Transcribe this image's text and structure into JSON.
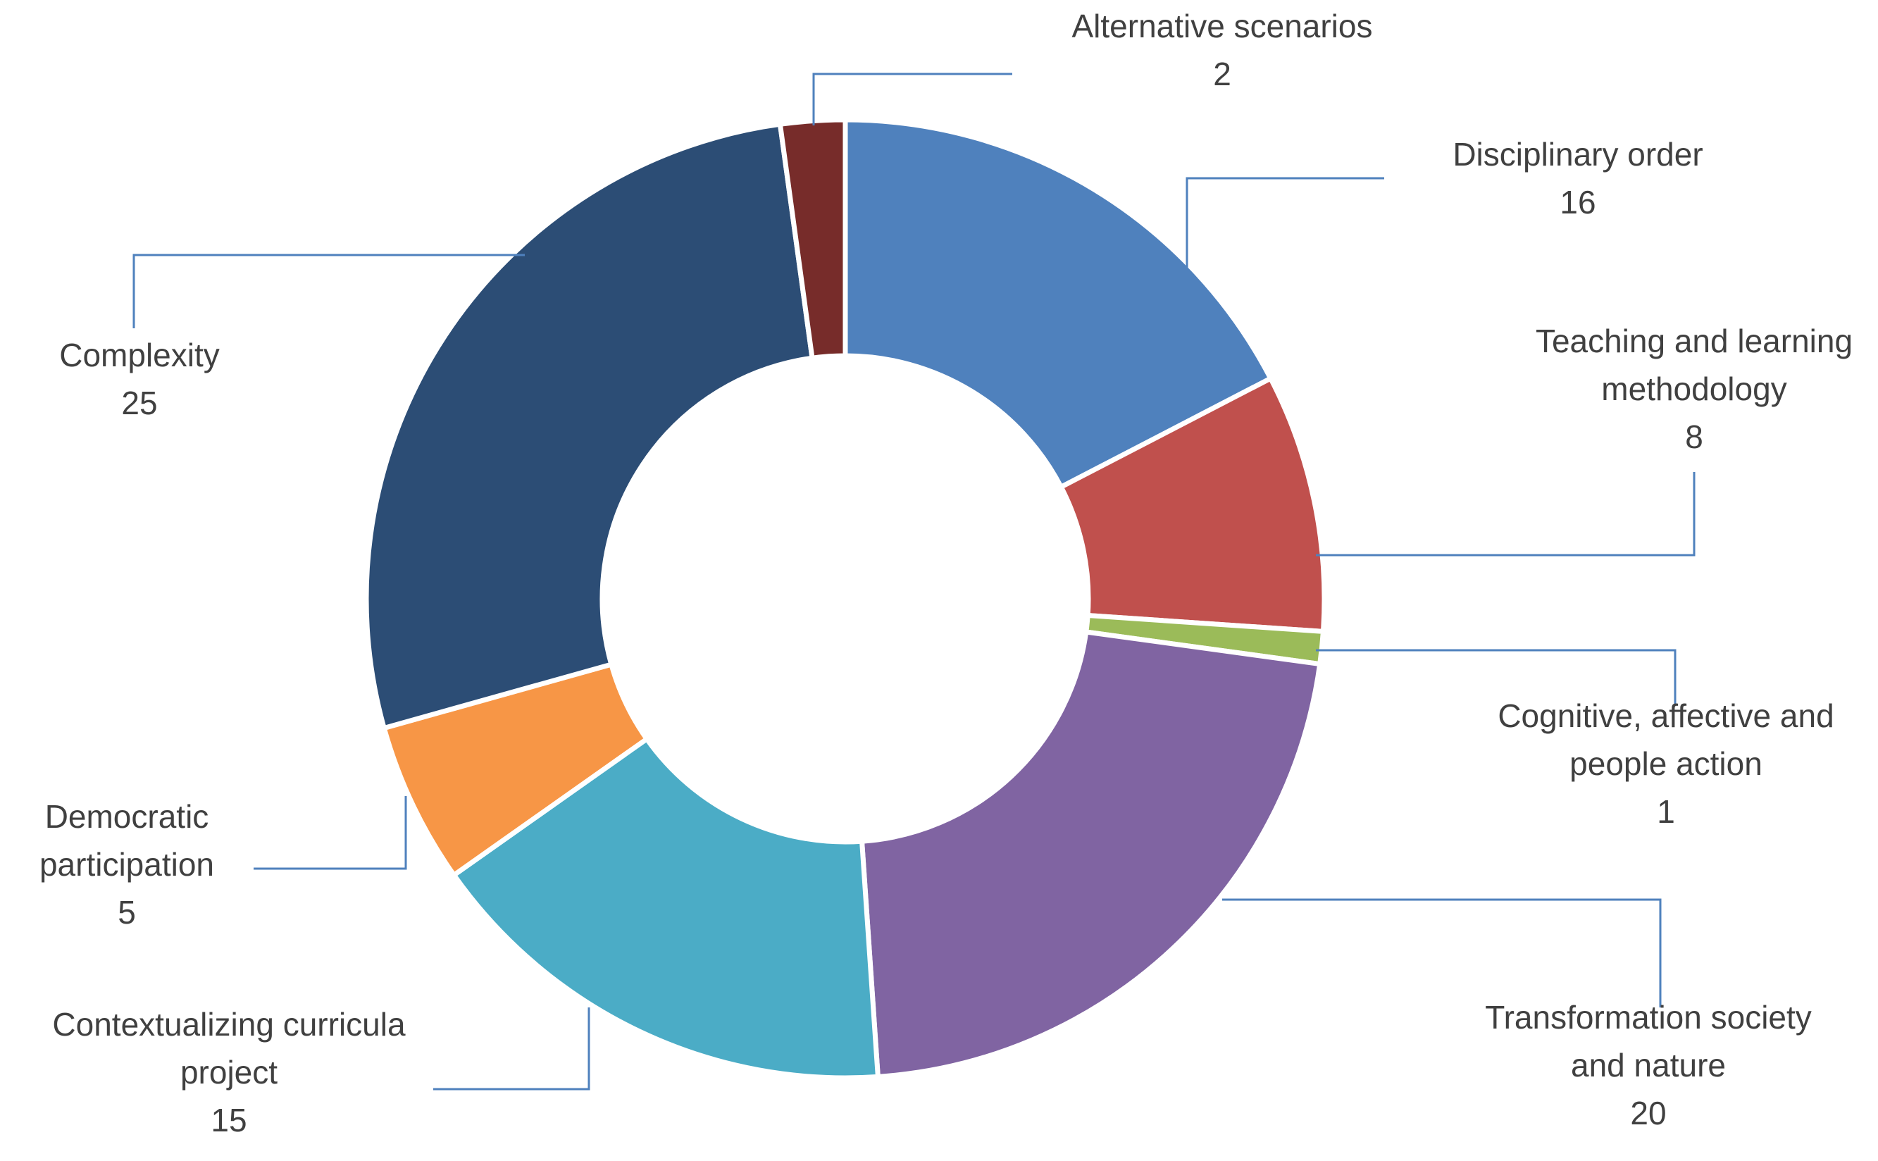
{
  "chart_data": {
    "type": "pie",
    "variant": "doughnut",
    "title": "",
    "legend": "none",
    "slices": [
      {
        "label": "Disciplinary order",
        "label_lines": [
          "Disciplinary order"
        ],
        "value": 16,
        "color": "#4f81bd"
      },
      {
        "label": "Teaching and learning methodology",
        "label_lines": [
          "Teaching and learning",
          "methodology"
        ],
        "value": 8,
        "color": "#c0504d"
      },
      {
        "label": "Cognitive, affective and people action",
        "label_lines": [
          "Cognitive, affective and",
          "people action"
        ],
        "value": 1,
        "color": "#9bbb59"
      },
      {
        "label": "Transformation society and nature",
        "label_lines": [
          "Transformation society",
          "and nature"
        ],
        "value": 20,
        "color": "#8064a2"
      },
      {
        "label": "Contextualizing curricula project",
        "label_lines": [
          "Contextualizing curricula",
          "project"
        ],
        "value": 15,
        "color": "#4bacc6"
      },
      {
        "label": "Democratic participation",
        "label_lines": [
          "Democratic",
          "participation"
        ],
        "value": 5,
        "color": "#f79646"
      },
      {
        "label": "Complexity",
        "label_lines": [
          "Complexity"
        ],
        "value": 25,
        "color": "#2c4d75"
      },
      {
        "label": "Alternative scenarios",
        "label_lines": [
          "Alternative scenarios"
        ],
        "value": 2,
        "color": "#772c2a"
      }
    ]
  }
}
